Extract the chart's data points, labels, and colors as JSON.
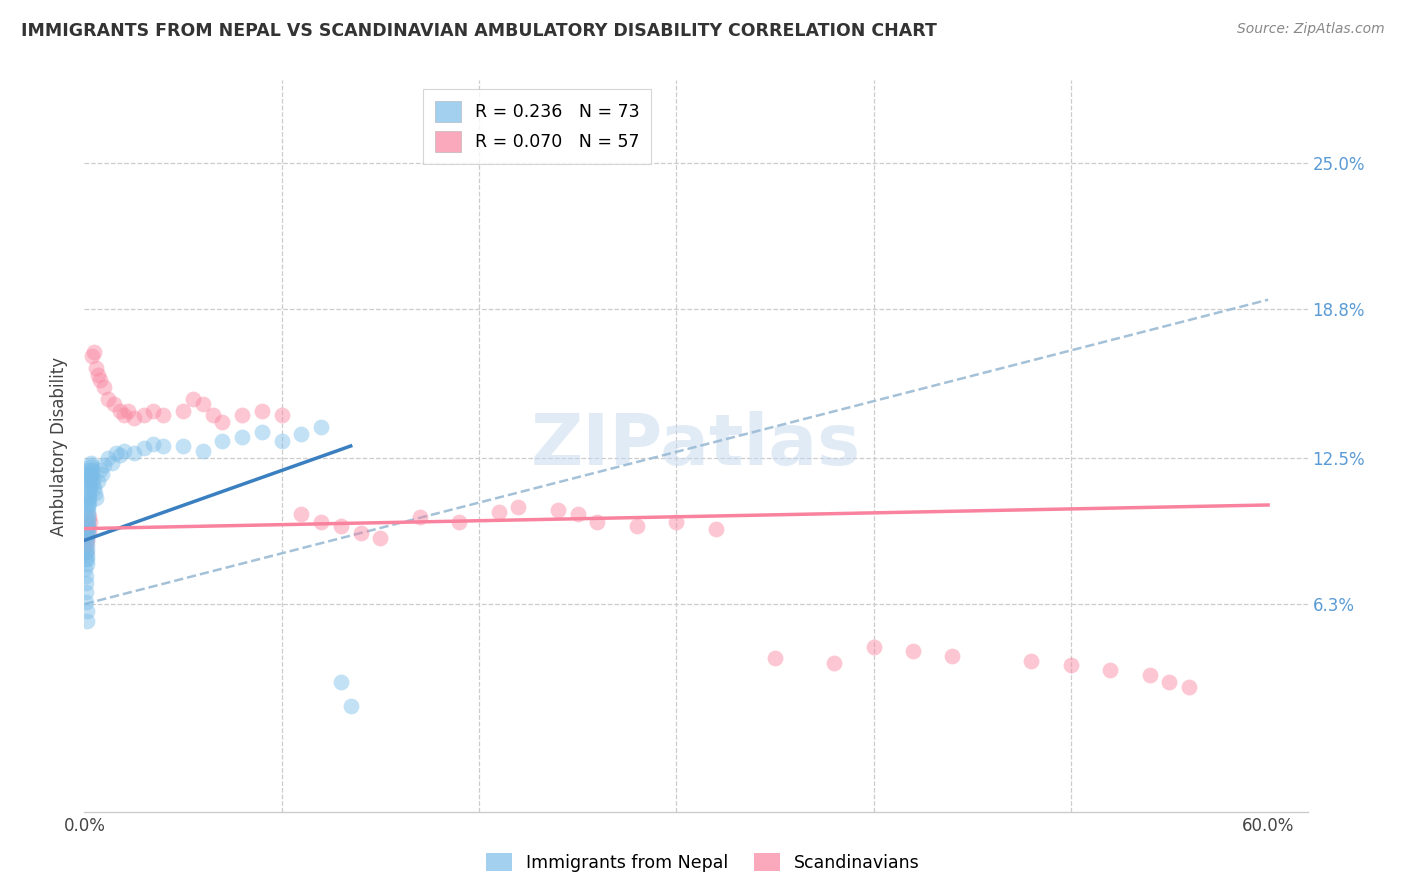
{
  "title": "IMMIGRANTS FROM NEPAL VS SCANDINAVIAN AMBULATORY DISABILITY CORRELATION CHART",
  "source": "Source: ZipAtlas.com",
  "ylabel": "Ambulatory Disability",
  "nepal_R": 0.236,
  "nepal_N": 73,
  "scand_R": 0.07,
  "scand_N": 57,
  "nepal_color": "#7bbde8",
  "scand_color": "#f9839e",
  "nepal_line_color": "#3a7fbf",
  "scand_line_color": "#f9839e",
  "dashed_line_color": "#9abbd4",
  "watermark_color": "#c5d8ef",
  "nepal_line_x0": 0.0,
  "nepal_line_y0": 0.09,
  "nepal_line_x1": 0.135,
  "nepal_line_y1": 0.13,
  "scand_line_x0": 0.0,
  "scand_line_y0": 0.095,
  "scand_line_x1": 0.6,
  "scand_line_y1": 0.105,
  "dash_line_x0": 0.0,
  "dash_line_y0": 0.063,
  "dash_line_x1": 0.6,
  "dash_line_y1": 0.192,
  "xlim": [
    0.0,
    0.62
  ],
  "ylim": [
    -0.025,
    0.285
  ],
  "yticks": [
    0.063,
    0.125,
    0.188,
    0.25
  ],
  "ytick_labels": [
    "6.3%",
    "12.5%",
    "18.8%",
    "25.0%"
  ],
  "xtick_vals": [
    0.0,
    0.1,
    0.2,
    0.3,
    0.4,
    0.5,
    0.6
  ],
  "xtick_labels": [
    "0.0%",
    "",
    "",
    "",
    "",
    "",
    "60.0%"
  ],
  "nepal_x": [
    0.0005,
    0.0007,
    0.0008,
    0.0009,
    0.001,
    0.001,
    0.001,
    0.0011,
    0.0011,
    0.0012,
    0.0012,
    0.0013,
    0.0013,
    0.0014,
    0.0014,
    0.0015,
    0.0015,
    0.0016,
    0.0016,
    0.0017,
    0.0017,
    0.0018,
    0.0018,
    0.0019,
    0.0019,
    0.002,
    0.002,
    0.0021,
    0.0021,
    0.0022,
    0.0022,
    0.0023,
    0.0024,
    0.0025,
    0.0026,
    0.0027,
    0.0028,
    0.0029,
    0.003,
    0.0031,
    0.0032,
    0.0033,
    0.0035,
    0.0037,
    0.0039,
    0.0042,
    0.0045,
    0.005,
    0.0055,
    0.006,
    0.007,
    0.008,
    0.009,
    0.01,
    0.012,
    0.014,
    0.016,
    0.018,
    0.02,
    0.025,
    0.03,
    0.035,
    0.04,
    0.05,
    0.06,
    0.07,
    0.08,
    0.09,
    0.1,
    0.11,
    0.12,
    0.13,
    0.135
  ],
  "nepal_y": [
    0.078,
    0.082,
    0.075,
    0.085,
    0.072,
    0.068,
    0.064,
    0.06,
    0.056,
    0.09,
    0.088,
    0.086,
    0.084,
    0.082,
    0.08,
    0.094,
    0.092,
    0.096,
    0.093,
    0.098,
    0.095,
    0.102,
    0.099,
    0.105,
    0.101,
    0.107,
    0.104,
    0.108,
    0.106,
    0.11,
    0.109,
    0.112,
    0.114,
    0.116,
    0.118,
    0.12,
    0.115,
    0.113,
    0.117,
    0.119,
    0.121,
    0.123,
    0.122,
    0.12,
    0.118,
    0.116,
    0.114,
    0.112,
    0.11,
    0.108,
    0.115,
    0.12,
    0.118,
    0.122,
    0.125,
    0.123,
    0.127,
    0.126,
    0.128,
    0.127,
    0.129,
    0.131,
    0.13,
    0.13,
    0.128,
    0.132,
    0.134,
    0.136,
    0.132,
    0.135,
    0.138,
    0.03,
    0.02
  ],
  "scand_x": [
    0.0008,
    0.001,
    0.0012,
    0.0015,
    0.0018,
    0.0022,
    0.0025,
    0.003,
    0.004,
    0.005,
    0.006,
    0.007,
    0.008,
    0.01,
    0.012,
    0.015,
    0.018,
    0.02,
    0.022,
    0.025,
    0.03,
    0.035,
    0.04,
    0.05,
    0.055,
    0.06,
    0.065,
    0.07,
    0.08,
    0.09,
    0.1,
    0.11,
    0.12,
    0.13,
    0.14,
    0.15,
    0.17,
    0.19,
    0.21,
    0.22,
    0.24,
    0.25,
    0.26,
    0.28,
    0.3,
    0.32,
    0.35,
    0.38,
    0.4,
    0.42,
    0.44,
    0.48,
    0.5,
    0.52,
    0.54,
    0.55,
    0.56
  ],
  "scand_y": [
    0.088,
    0.085,
    0.092,
    0.09,
    0.096,
    0.094,
    0.1,
    0.098,
    0.168,
    0.17,
    0.163,
    0.16,
    0.158,
    0.155,
    0.15,
    0.148,
    0.145,
    0.143,
    0.145,
    0.142,
    0.143,
    0.145,
    0.143,
    0.145,
    0.15,
    0.148,
    0.143,
    0.14,
    0.143,
    0.145,
    0.143,
    0.101,
    0.098,
    0.096,
    0.093,
    0.091,
    0.1,
    0.098,
    0.102,
    0.104,
    0.103,
    0.101,
    0.098,
    0.096,
    0.098,
    0.095,
    0.04,
    0.038,
    0.045,
    0.043,
    0.041,
    0.039,
    0.037,
    0.035,
    0.033,
    0.03,
    0.028
  ]
}
